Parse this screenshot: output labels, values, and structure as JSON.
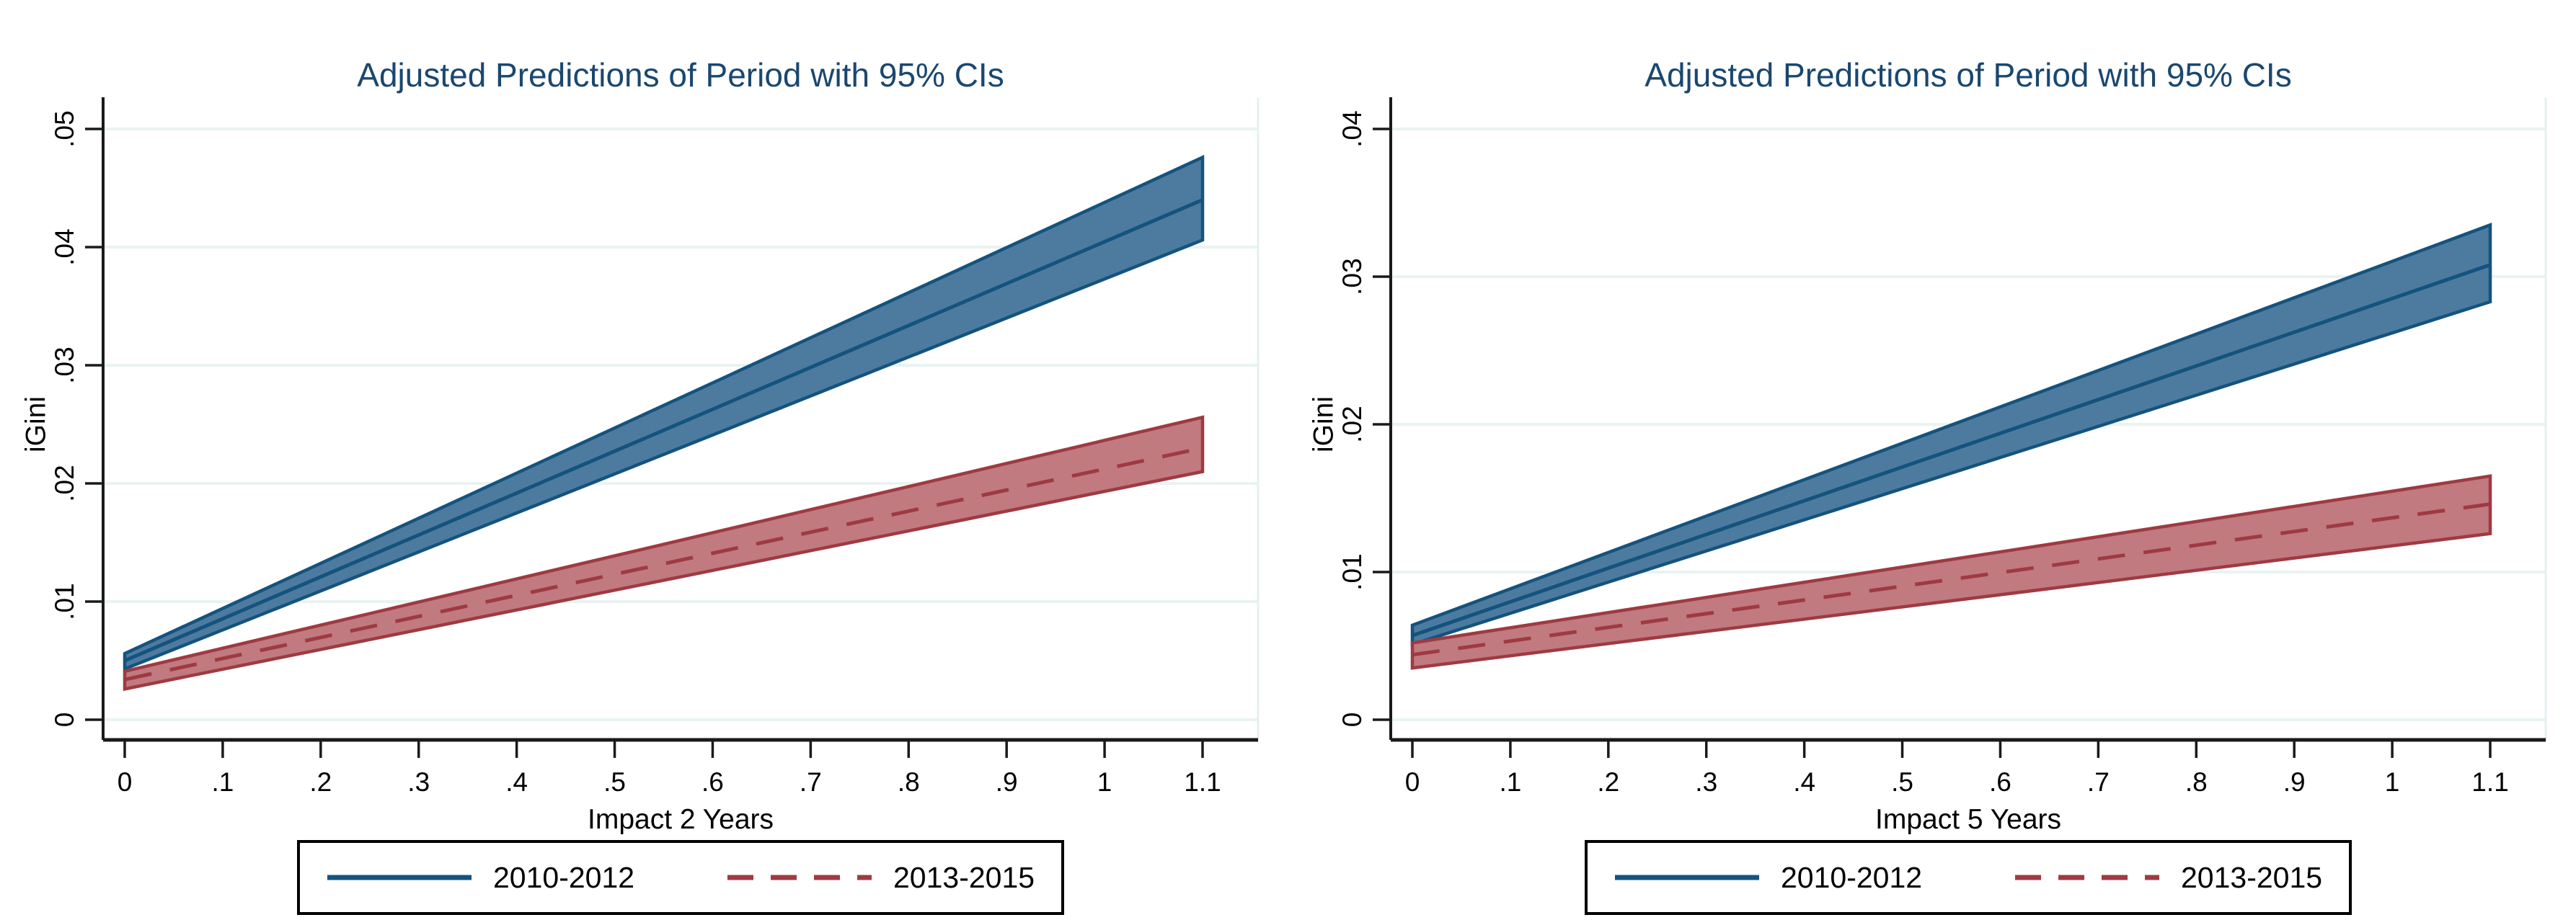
{
  "page": {
    "background": "#ffffff"
  },
  "colors": {
    "title": "#1a476f",
    "text": "#000000",
    "axis_line": "#1a1a1a",
    "grid": "#e9f3f2",
    "plot_border": "#e4f0f0",
    "blue_line": "#14537e",
    "blue_fill": "#4d7b9f",
    "red_line": "#9f3a42",
    "red_fill": "#c17a7f",
    "legend_border": "#000000",
    "legend_bg": "#ffffff"
  },
  "chart_data": [
    {
      "type": "area",
      "title": "Adjusted Predictions of Period with 95% CIs",
      "xlabel": "Impact 2 Years",
      "ylabel": "iGini",
      "xlim": [
        0,
        1.1
      ],
      "ylim": [
        0,
        0.05
      ],
      "grid": true,
      "legend_position": "bottom",
      "xticks": {
        "values": [
          0,
          0.1,
          0.2,
          0.3,
          0.4,
          0.5,
          0.6,
          0.7,
          0.8,
          0.9,
          1,
          1.1
        ],
        "labels": [
          "0",
          ".1",
          ".2",
          ".3",
          ".4",
          ".5",
          ".6",
          ".7",
          ".8",
          ".9",
          "1",
          "1.1"
        ]
      },
      "yticks": {
        "values": [
          0,
          0.01,
          0.02,
          0.03,
          0.04,
          0.05
        ],
        "labels": [
          "0",
          ".01",
          ".02",
          ".03",
          ".04",
          ".05"
        ]
      },
      "series": [
        {
          "name": "2010-2012",
          "line": "solid",
          "color_key": "blue",
          "x": [
            0,
            1.1
          ],
          "fit": [
            0.005,
            0.044
          ],
          "ci_low": [
            0.0043,
            0.0406
          ],
          "ci_high": [
            0.0056,
            0.0476
          ]
        },
        {
          "name": "2013-2015",
          "line": "dashed",
          "color_key": "red",
          "x": [
            0,
            1.1
          ],
          "fit": [
            0.0034,
            0.023
          ],
          "ci_low": [
            0.0026,
            0.021
          ],
          "ci_high": [
            0.0041,
            0.0256
          ]
        }
      ]
    },
    {
      "type": "area",
      "title": "Adjusted Predictions of Period with 95% CIs",
      "xlabel": "Impact 5 Years",
      "ylabel": "iGini",
      "xlim": [
        0,
        1.1
      ],
      "ylim": [
        0,
        0.04
      ],
      "grid": true,
      "legend_position": "bottom",
      "xticks": {
        "values": [
          0,
          0.1,
          0.2,
          0.3,
          0.4,
          0.5,
          0.6,
          0.7,
          0.8,
          0.9,
          1,
          1.1
        ],
        "labels": [
          "0",
          ".1",
          ".2",
          ".3",
          ".4",
          ".5",
          ".6",
          ".7",
          ".8",
          ".9",
          "1",
          "1.1"
        ]
      },
      "yticks": {
        "values": [
          0,
          0.01,
          0.02,
          0.03,
          0.04
        ],
        "labels": [
          "0",
          ".01",
          ".02",
          ".03",
          ".04"
        ]
      },
      "series": [
        {
          "name": "2010-2012",
          "line": "solid",
          "color_key": "blue",
          "x": [
            0,
            1.1
          ],
          "fit": [
            0.0057,
            0.0308
          ],
          "ci_low": [
            0.0051,
            0.0283
          ],
          "ci_high": [
            0.0064,
            0.0335
          ]
        },
        {
          "name": "2013-2015",
          "line": "dashed",
          "color_key": "red",
          "x": [
            0,
            1.1
          ],
          "fit": [
            0.0044,
            0.0146
          ],
          "ci_low": [
            0.0035,
            0.0126
          ],
          "ci_high": [
            0.0052,
            0.0165
          ]
        }
      ]
    }
  ]
}
